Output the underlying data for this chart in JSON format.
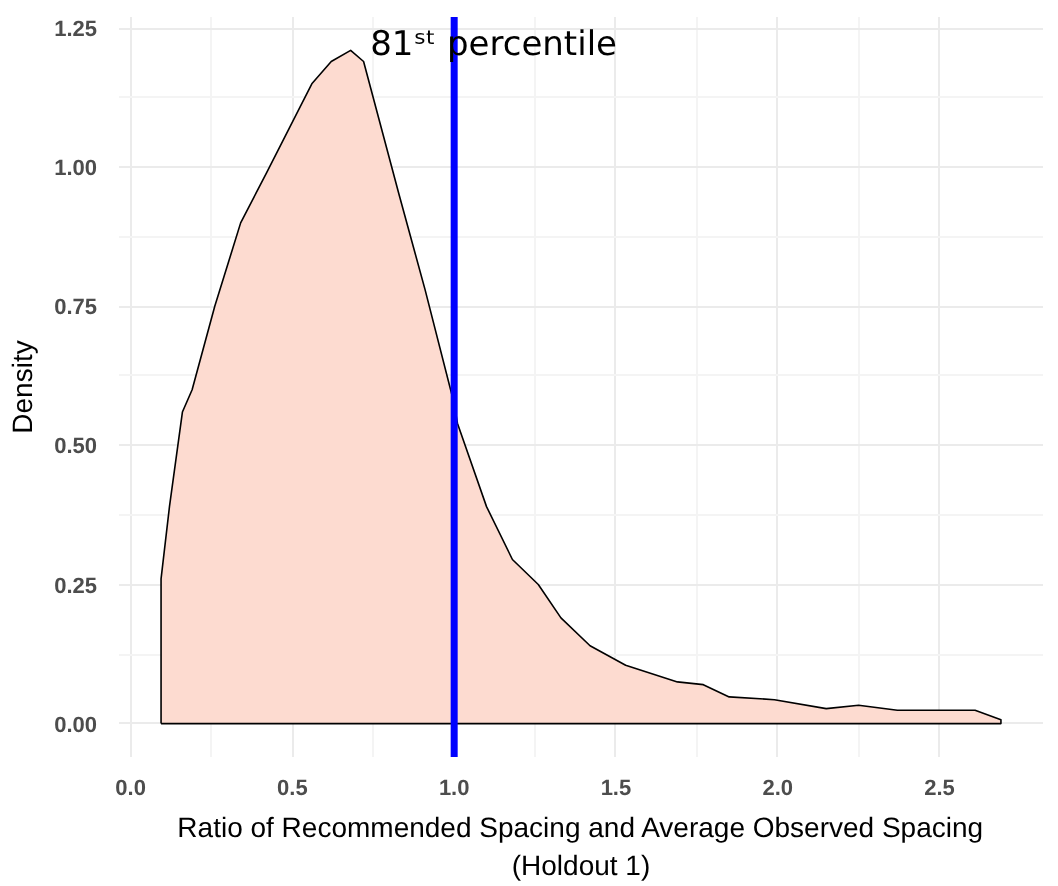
{
  "chart_data": {
    "type": "area",
    "xlabel": "Ratio of Recommended Spacing and Average Observed Spacing\n(Holdout 1)",
    "ylabel": "Density",
    "series": [
      {
        "color": "#fddbd0",
        "x": [
          0.094,
          0.094,
          0.12,
          0.16,
          0.19,
          0.26,
          0.34,
          0.42,
          0.49,
          0.56,
          0.62,
          0.68,
          0.72,
          0.83,
          0.91,
          1.0,
          1.01,
          1.1,
          1.18,
          1.26,
          1.33,
          1.42,
          1.53,
          1.69,
          1.77,
          1.85,
          1.99,
          2.15,
          2.25,
          2.37,
          2.61,
          2.69
        ],
        "values": [
          0,
          0.26,
          0.39,
          0.56,
          0.6,
          0.75,
          0.9,
          0.99,
          1.07,
          1.15,
          1.19,
          1.21,
          1.19,
          0.95,
          0.78,
          0.575,
          0.54,
          0.39,
          0.295,
          0.25,
          0.19,
          0.14,
          0.105,
          0.075,
          0.07,
          0.048,
          0.043,
          0.027,
          0.033,
          0.024,
          0.024,
          0.007
        ]
      }
    ],
    "xlim": [
      -0.036,
      2.82
    ],
    "ylim": [
      -0.06,
      1.27
    ],
    "xticks": [
      {
        "value": 0,
        "label": "0.0"
      },
      0.5,
      {
        "value": 1,
        "label": "1.0"
      },
      1.5,
      {
        "value": 2,
        "label": "2.0"
      },
      2.5
    ],
    "yticks": [
      {
        "value": 0,
        "label": "0.00"
      },
      0.25,
      {
        "value": 0.5,
        "label": "0.50"
      },
      0.75,
      {
        "value": 1,
        "label": "1.00"
      },
      1.25
    ],
    "ref_lines": [
      {
        "axis": "x",
        "value": 1,
        "label": "81ˢᵗ percentile",
        "color": "#0000ff"
      }
    ],
    "grid": true
  }
}
